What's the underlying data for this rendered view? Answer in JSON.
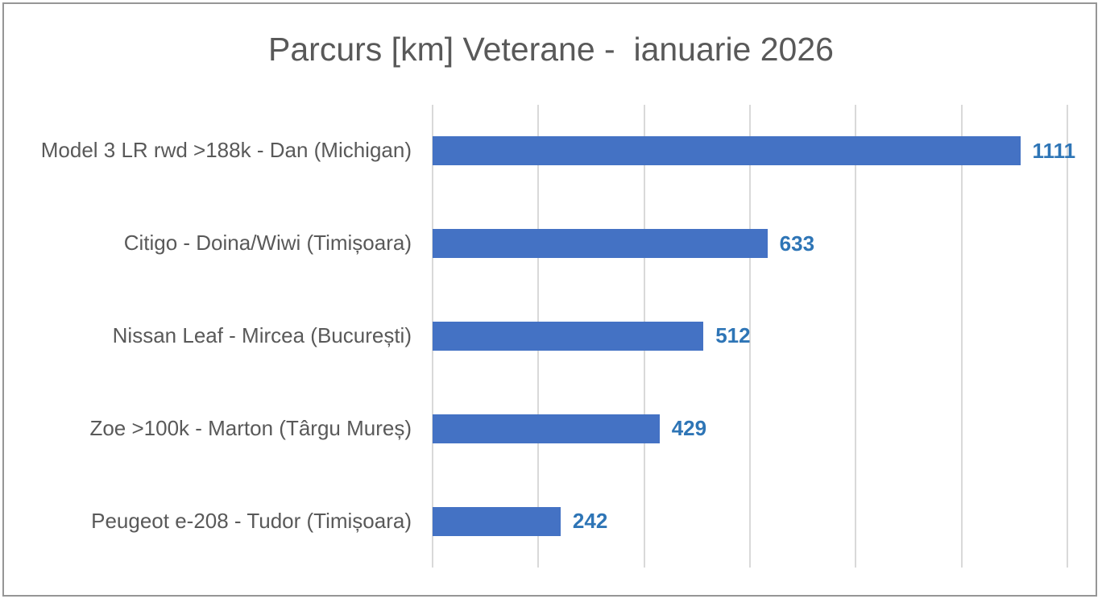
{
  "chart_data": {
    "type": "bar",
    "orientation": "horizontal",
    "title": "Parcurs [km] Veterane -  ianuarie 2026",
    "categories": [
      "Model 3 LR rwd >188k - Dan (Michigan)",
      "Citigo - Doina/Wiwi (Timișoara)",
      "Nissan Leaf - Mircea (București)",
      "Zoe >100k - Marton (Târgu Mureș)",
      "Peugeot e-208 - Tudor (Timișoara)"
    ],
    "values": [
      1111,
      633,
      512,
      429,
      242
    ],
    "value_labels": [
      "1111",
      "633",
      "512",
      "429",
      "242"
    ],
    "xlabel": "",
    "ylabel": "",
    "xlim": [
      0,
      1200
    ],
    "gridline_interval": 200,
    "grid": true,
    "data_labels_shown": true,
    "legend": "none",
    "colors": {
      "bar": "#4472C4",
      "value_label": "#2E75B6",
      "title": "#595959",
      "category_label": "#595959",
      "gridline": "#D9D9D9",
      "border": "#969696",
      "background": "#FFFFFF"
    }
  }
}
